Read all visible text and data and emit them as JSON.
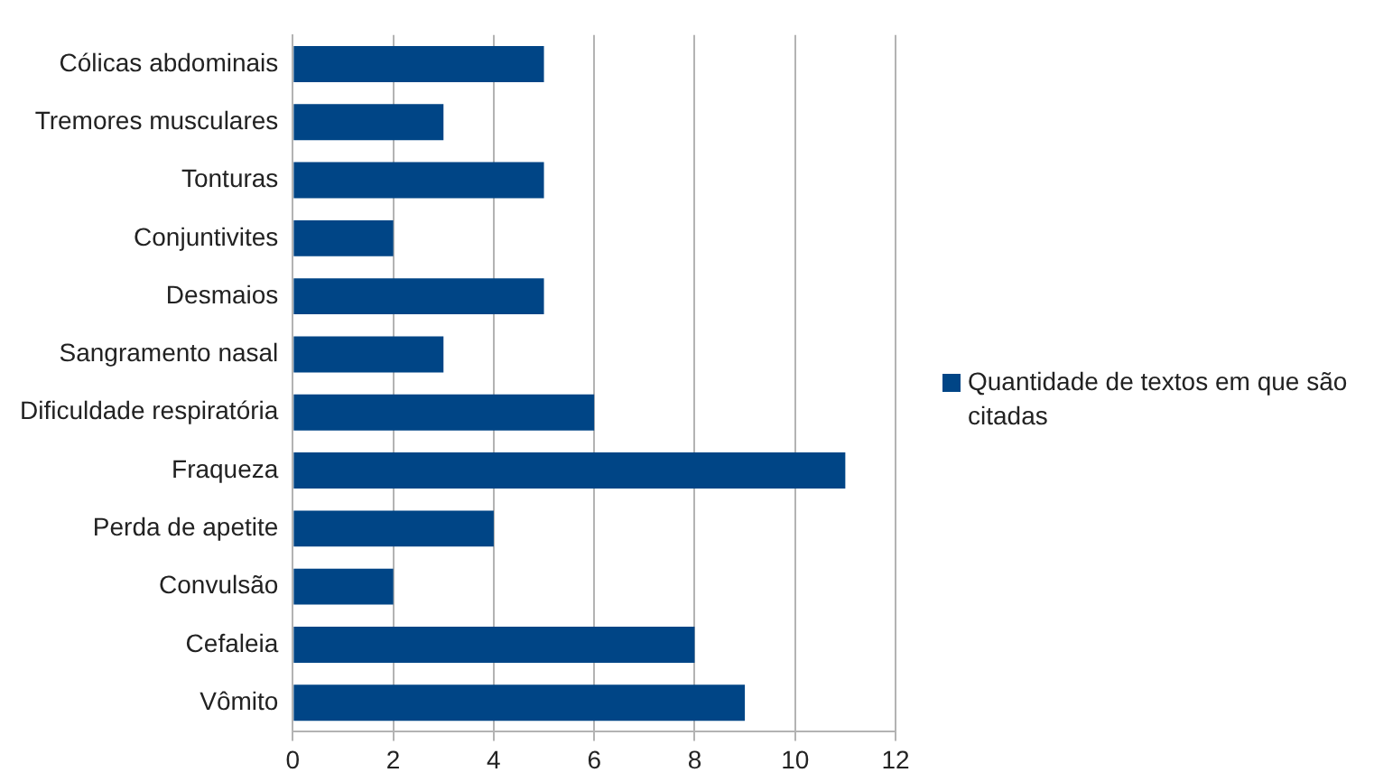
{
  "chart_data": {
    "type": "bar",
    "orientation": "horizontal",
    "categories": [
      "Cólicas abdominais",
      "Tremores musculares",
      "Tonturas",
      "Conjuntivites",
      "Desmaios",
      "Sangramento nasal",
      "Dificuldade respiratória",
      "Fraqueza",
      "Perda de apetite",
      "Convulsão",
      "Cefaleia",
      "Vômito"
    ],
    "series": [
      {
        "name": "Quantidade de textos em que são citadas",
        "color": "#004586",
        "values": [
          5,
          3,
          5,
          2,
          5,
          3,
          6,
          11,
          4,
          2,
          8,
          9
        ]
      }
    ],
    "xlim": [
      0,
      12
    ],
    "xticks": [
      0,
      2,
      4,
      6,
      8,
      10,
      12
    ],
    "grid": "x",
    "legend": "right"
  }
}
